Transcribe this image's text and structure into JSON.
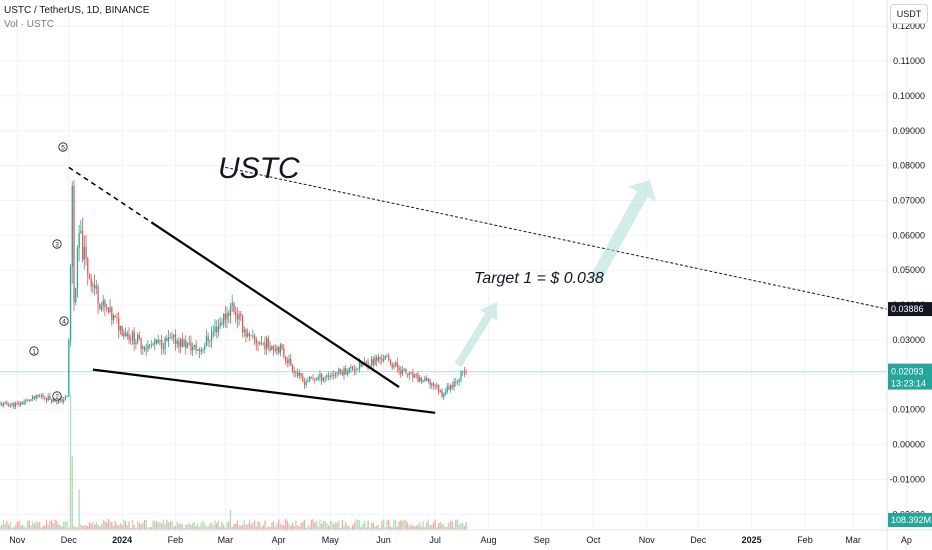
{
  "header": {
    "symbol_line": "USTC / TetherUS, 1D, BINANCE",
    "volume_line": "Vol · USTC",
    "currency_button": "USDT"
  },
  "annotations": {
    "title": "USTC",
    "target": "Target 1 = $ 0.038",
    "waves": [
      "1",
      "2",
      "3",
      "4",
      "5"
    ]
  },
  "price_labels": {
    "target_price": "0.03886",
    "current_price": "0.02093",
    "countdown": "13:23:14",
    "volume": "108.392M"
  },
  "colors": {
    "up": "#26a69a",
    "down": "#ef5350",
    "wedge": "#000000",
    "arrow": "#b2dfdb",
    "price_line": "#26a69a"
  },
  "chart_data": {
    "type": "candlestick",
    "y_axis": {
      "ticks": [
        0.12,
        0.11,
        0.1,
        0.09,
        0.08,
        0.07,
        0.06,
        0.05,
        0.04,
        0.03,
        0.02,
        0.01,
        0.0,
        -0.01,
        -0.02
      ],
      "tick_labels": [
        "0.12000",
        "0.11000",
        "0.10000",
        "0.09000",
        "0.08000",
        "0.07000",
        "0.06000",
        "0.05000",
        "0.04000",
        "0.03000",
        "0.02000",
        "0.01000",
        "0.00000",
        "-0.01000",
        "-0.02000"
      ],
      "range": [
        -0.0245,
        0.1275
      ]
    },
    "x_axis": {
      "labels": [
        "Nov",
        "Dec",
        "2024",
        "Feb",
        "Mar",
        "Apr",
        "May",
        "Jun",
        "Jul",
        "Aug",
        "Sep",
        "Oct",
        "Nov",
        "Dec",
        "2025",
        "Feb",
        "Mar",
        "Ap"
      ],
      "bold_labels": [
        "2024",
        "2025"
      ]
    },
    "price_path": [
      [
        "2023-11-01",
        0.0115
      ],
      [
        "2023-11-15",
        0.014
      ],
      [
        "2023-11-25",
        0.0123
      ],
      [
        "2023-11-30",
        0.0135
      ],
      [
        "2023-12-01",
        0.03
      ],
      [
        "2023-12-02",
        0.05
      ],
      [
        "2023-12-03",
        0.075
      ],
      [
        "2023-12-04",
        0.04
      ],
      [
        "2023-12-07",
        0.06
      ],
      [
        "2023-12-12",
        0.05
      ],
      [
        "2023-12-20",
        0.04
      ],
      [
        "2024-01-01",
        0.033
      ],
      [
        "2024-01-15",
        0.028
      ],
      [
        "2024-02-01",
        0.03
      ],
      [
        "2024-02-15",
        0.027
      ],
      [
        "2024-03-01",
        0.037
      ],
      [
        "2024-03-05",
        0.04
      ],
      [
        "2024-03-15",
        0.03
      ],
      [
        "2024-04-01",
        0.028
      ],
      [
        "2024-04-15",
        0.018
      ],
      [
        "2024-05-01",
        0.02
      ],
      [
        "2024-05-15",
        0.022
      ],
      [
        "2024-06-01",
        0.025
      ],
      [
        "2024-06-15",
        0.02
      ],
      [
        "2024-07-01",
        0.017
      ],
      [
        "2024-07-05",
        0.0145
      ],
      [
        "2024-07-15",
        0.0195
      ],
      [
        "2024-07-19",
        0.0209
      ]
    ],
    "volume_spikes": [
      [
        "2023-12-02",
        1.0
      ],
      [
        "2023-12-03",
        0.55
      ],
      [
        "2023-12-07",
        0.3
      ],
      [
        "2024-03-04",
        0.15
      ]
    ],
    "wedge_upper": [
      [
        "2023-12-01",
        0.0795
      ],
      [
        "2024-06-10",
        0.0165
      ]
    ],
    "wedge_lower": [
      [
        "2023-12-15",
        0.0215
      ],
      [
        "2024-07-01",
        0.0091
      ]
    ],
    "target_level": 0.03886,
    "current_level": 0.02093
  }
}
